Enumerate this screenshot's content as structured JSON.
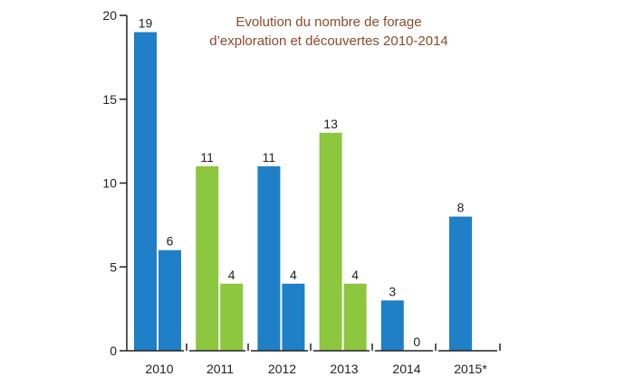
{
  "chart_data": {
    "type": "bar",
    "title_lines": [
      "Evolution du nombre de forage",
      "d’exploration et découvertes 2010-2014"
    ],
    "categories": [
      "2010",
      "2011",
      "2012",
      "2013",
      "2014",
      "2015*"
    ],
    "bars": [
      {
        "category": "2010",
        "values": [
          19,
          6
        ],
        "label_texts": [
          "19",
          "6"
        ]
      },
      {
        "category": "2011",
        "values": [
          11,
          4
        ],
        "label_texts": [
          "11",
          "4"
        ]
      },
      {
        "category": "2012",
        "values": [
          11,
          4
        ],
        "label_texts": [
          "11",
          "4"
        ]
      },
      {
        "category": "2013",
        "values": [
          13,
          4
        ],
        "label_texts": [
          "13",
          "4"
        ]
      },
      {
        "category": "2014",
        "values": [
          3,
          0
        ],
        "label_texts": [
          "3",
          "0"
        ]
      },
      {
        "category": "2015*",
        "values": [
          8
        ],
        "label_texts": [
          "8"
        ]
      }
    ],
    "bar_colors": {
      "blue": "#1f7fc7",
      "green": "#8dc63f"
    },
    "category_colors": [
      "blue",
      "green",
      "blue",
      "green",
      "blue",
      "blue"
    ],
    "ylim": [
      0,
      20
    ],
    "y_ticks": [
      0,
      5,
      10,
      15,
      20
    ],
    "y_tick_labels": [
      "0",
      "5",
      "10",
      "15",
      "20"
    ],
    "grid": false,
    "legend": "none"
  }
}
